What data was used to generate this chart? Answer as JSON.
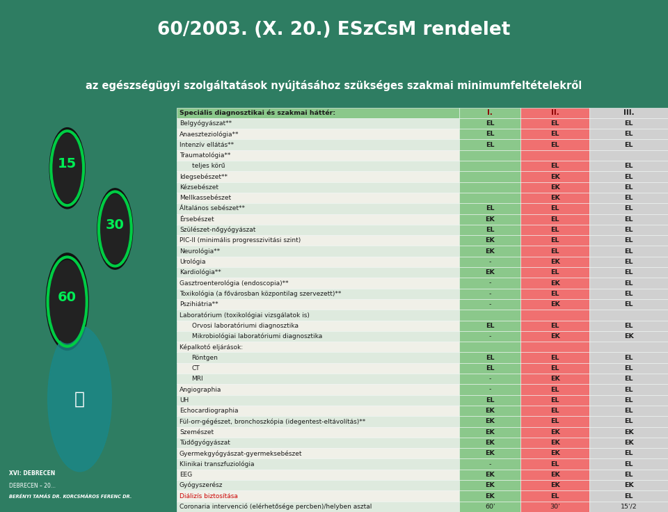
{
  "title1": "60/2003. (X. 20.) ESzCsM rendelet",
  "title2": "az egészségügyi szolgáltatások nyújtásához szükséges szakmai minimumfeltételekről",
  "header_bg": "#2e7d62",
  "header2_bg": "#1a5c48",
  "bg_color": "#2e7d62",
  "table_bg": "#f0f0e0",
  "row_alt1": "#deeade",
  "row_alt2": "#f0f0e8",
  "green_cell": "#8bc88b",
  "red_cell": "#f07070",
  "grey_cell": "#d0d0d0",
  "rows": [
    {
      "label": "Speciális diagnosztikai és szakmai háttér:",
      "c1_val": "",
      "c2_val": "",
      "c3_val": "",
      "is_header": true,
      "indent": 0
    },
    {
      "label": "Belgyógyászat**",
      "c1_val": "EL",
      "c2_val": "EL",
      "c3_val": "EL",
      "indent": 0
    },
    {
      "label": "Anaeszteziológia**",
      "c1_val": "EL",
      "c2_val": "EL",
      "c3_val": "EL",
      "indent": 0
    },
    {
      "label": "Intenzív ellátás**",
      "c1_val": "EL",
      "c2_val": "EL",
      "c3_val": "EL",
      "indent": 0
    },
    {
      "label": "Traumatológia**",
      "c1_val": "",
      "c2_val": "",
      "c3_val": "",
      "indent": 0
    },
    {
      "label": "teljes körű",
      "c1_val": "",
      "c2_val": "EL",
      "c3_val": "EL",
      "indent": 1
    },
    {
      "label": "Idegsebészet**",
      "c1_val": "",
      "c2_val": "EK",
      "c3_val": "EL",
      "indent": 0
    },
    {
      "label": "Kézsebészet",
      "c1_val": "",
      "c2_val": "EK",
      "c3_val": "EL",
      "indent": 0
    },
    {
      "label": "Mellkassebészet",
      "c1_val": "",
      "c2_val": "EK",
      "c3_val": "EL",
      "indent": 0
    },
    {
      "label": "Általános sebészet**",
      "c1_val": "EL",
      "c2_val": "EL",
      "c3_val": "EL",
      "indent": 0
    },
    {
      "label": "Érsebészet",
      "c1_val": "EK",
      "c2_val": "EL",
      "c3_val": "EL",
      "indent": 0
    },
    {
      "label": "Szülészet-nőgyógyászat",
      "c1_val": "EL",
      "c2_val": "EL",
      "c3_val": "EL",
      "indent": 0
    },
    {
      "label": "PIC-II (minimális progresszivitási szint)",
      "c1_val": "EK",
      "c2_val": "EL",
      "c3_val": "EL",
      "indent": 0
    },
    {
      "label": "Neurológia**",
      "c1_val": "EK",
      "c2_val": "EL",
      "c3_val": "EL",
      "indent": 0
    },
    {
      "label": "Urológia",
      "c1_val": "-",
      "c2_val": "EK",
      "c3_val": "EL",
      "indent": 0
    },
    {
      "label": "Kardiológia**",
      "c1_val": "EK",
      "c2_val": "EL",
      "c3_val": "EL",
      "indent": 0
    },
    {
      "label": "Gasztroenterológia (endoscopia)**",
      "c1_val": "-",
      "c2_val": "EK",
      "c3_val": "EL",
      "indent": 0
    },
    {
      "label": "Toxikológia (a fővárosban központilag szervezett)**",
      "c1_val": "-",
      "c2_val": "EL",
      "c3_val": "EL",
      "indent": 0
    },
    {
      "label": "Pszihiátria**",
      "c1_val": "-",
      "c2_val": "EK",
      "c3_val": "EL",
      "indent": 0
    },
    {
      "label": "Laboratórium (toxikológiai vizsgálatok is)",
      "c1_val": "",
      "c2_val": "",
      "c3_val": "",
      "indent": 0
    },
    {
      "label": "Orvosi laboratóriumi diagnosztika",
      "c1_val": "EL",
      "c2_val": "EL",
      "c3_val": "EL",
      "indent": 1
    },
    {
      "label": "Mikrobiológiai laboratóriumi diagnosztika",
      "c1_val": "-",
      "c2_val": "EK",
      "c3_val": "EK",
      "indent": 1
    },
    {
      "label": "Képalkotó eljárások:",
      "c1_val": "",
      "c2_val": "",
      "c3_val": "",
      "indent": 0
    },
    {
      "label": "Röntgen",
      "c1_val": "EL",
      "c2_val": "EL",
      "c3_val": "EL",
      "indent": 1
    },
    {
      "label": "CT",
      "c1_val": "EL",
      "c2_val": "EL",
      "c3_val": "EL",
      "indent": 1
    },
    {
      "label": "MRI",
      "c1_val": "-",
      "c2_val": "EK",
      "c3_val": "EL",
      "indent": 1
    },
    {
      "label": "Angiographia",
      "c1_val": "-",
      "c2_val": "EL",
      "c3_val": "EL",
      "indent": 0
    },
    {
      "label": "UH",
      "c1_val": "EL",
      "c2_val": "EL",
      "c3_val": "EL",
      "indent": 0
    },
    {
      "label": "Echocardiographia",
      "c1_val": "EK",
      "c2_val": "EL",
      "c3_val": "EL",
      "indent": 0
    },
    {
      "label": "Fül-orr-gégészet, bronchoszkópia (idegentest-eltávolítás)**",
      "c1_val": "EK",
      "c2_val": "EL",
      "c3_val": "EL",
      "indent": 0
    },
    {
      "label": "Szemészet",
      "c1_val": "EK",
      "c2_val": "EK",
      "c3_val": "EK",
      "indent": 0
    },
    {
      "label": "Tüdőgyógyászat",
      "c1_val": "EK",
      "c2_val": "EK",
      "c3_val": "EK",
      "indent": 0
    },
    {
      "label": "Gyermekgyógyászat-gyermeksebészet",
      "c1_val": "EK",
      "c2_val": "EK",
      "c3_val": "EL",
      "indent": 0
    },
    {
      "label": "Klinikai transzfuziológia",
      "c1_val": "-",
      "c2_val": "EL",
      "c3_val": "EL",
      "indent": 0
    },
    {
      "label": "EEG",
      "c1_val": "EK",
      "c2_val": "EK",
      "c3_val": "EL",
      "indent": 0
    },
    {
      "label": "Gyógyszerész",
      "c1_val": "EK",
      "c2_val": "EK",
      "c3_val": "EK",
      "indent": 0
    },
    {
      "label": "Diálizís biztosítása",
      "c1_val": "EK",
      "c2_val": "EL",
      "c3_val": "EL",
      "red_label": true,
      "indent": 0
    },
    {
      "label": "Coronaria intervenció (elérhetősége percben)/helyben asztal",
      "c1_val": "60'",
      "c2_val": "30'",
      "c3_val": "15'/2",
      "indent": 0
    }
  ]
}
